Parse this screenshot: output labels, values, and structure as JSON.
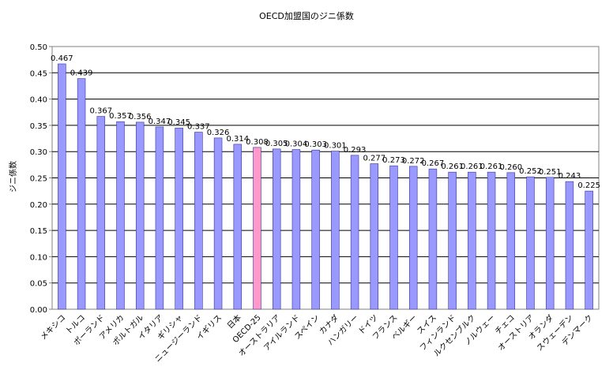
{
  "chart_data": {
    "type": "bar",
    "title": "OECD加盟国のジニ係数",
    "xlabel": "",
    "ylabel": "ジニ係数",
    "ylim": [
      0,
      0.5
    ],
    "ytick_step": 0.05,
    "yticks": [
      "0.00",
      "0.05",
      "0.10",
      "0.15",
      "0.20",
      "0.25",
      "0.30",
      "0.35",
      "0.40",
      "0.45",
      "0.50"
    ],
    "grid": true,
    "legend": "none",
    "categories": [
      "メキシコ",
      "トルコ",
      "ポーランド",
      "アメリカ",
      "ポルトガル",
      "イタリア",
      "ギリシャ",
      "ニュージーランド",
      "イギリス",
      "日本",
      "OECD-25",
      "オーストラリア",
      "アイルランド",
      "スペイン",
      "カナダ",
      "ハンガリー",
      "ドイツ",
      "フランス",
      "ベルギー",
      "スイス",
      "フィンランド",
      "ルクセンブルク",
      "ノルウェー",
      "チェコ",
      "オーストリア",
      "オランダ",
      "スウェーデン",
      "デンマーク"
    ],
    "values": [
      0.467,
      0.439,
      0.367,
      0.357,
      0.356,
      0.347,
      0.345,
      0.337,
      0.326,
      0.314,
      0.308,
      0.305,
      0.304,
      0.303,
      0.301,
      0.293,
      0.277,
      0.273,
      0.272,
      0.267,
      0.261,
      0.261,
      0.261,
      0.26,
      0.252,
      0.251,
      0.243,
      0.225
    ],
    "value_labels": [
      "0.467",
      "0.439",
      "0.367",
      "0.357",
      "0.356",
      "0.347",
      "0.345",
      "0.337",
      "0.326",
      "0.314",
      "0.308",
      "0.305",
      "0.304",
      "0.303",
      "0.301",
      "0.293",
      "0.277",
      "0.273",
      "0.272",
      "0.267",
      "0.261",
      "0.261",
      "0.261",
      "0.260",
      "0.252",
      "0.251",
      "0.243",
      "0.225"
    ],
    "highlight_index": 10,
    "colors": {
      "bar": "#9999ff",
      "bar_stroke": "#333399",
      "highlight": "#ff99cc",
      "grid": "#000000",
      "axis": "#808080"
    }
  }
}
